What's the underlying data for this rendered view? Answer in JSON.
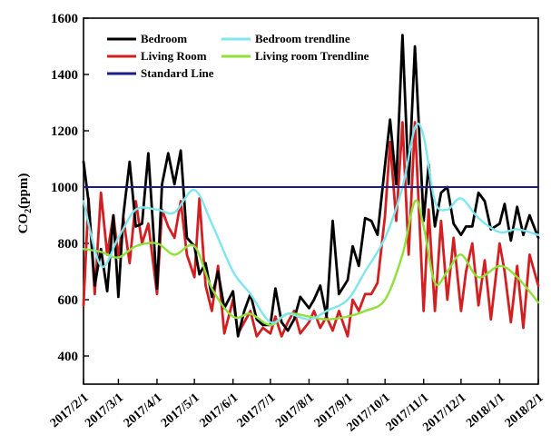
{
  "chart_data": {
    "type": "line",
    "title": "",
    "ylabel": "CO₂(ppm)",
    "ylabel_main": "CO",
    "ylabel_sub": "2",
    "ylabel_rest": "(ppm)",
    "xlabel": "",
    "ylim": [
      300,
      1600
    ],
    "y_ticks": [
      400,
      600,
      800,
      1000,
      1200,
      1400,
      1600
    ],
    "x_tick_labels": [
      "2017/2/1",
      "2017/3/1",
      "2017/4/1",
      "2017/5/1",
      "2017/6/1",
      "2017/7/1",
      "2017/8/1",
      "2017/9/1",
      "2017/10/1",
      "2017/11/1",
      "2017/12/1",
      "2018/1/1",
      "2018/2/1"
    ],
    "grid": false,
    "legend_position": "top-left",
    "colors": {
      "bedroom": "#000000",
      "bedroom_trend": "#7fe6ee",
      "living": "#d11f22",
      "living_trend": "#8ee03a",
      "standard": "#1b1b8c"
    },
    "series": [
      {
        "name": "Bedroom",
        "key": "bedroom",
        "x": [
          "2017/2/1",
          "2017/2/5",
          "2017/2/10",
          "2017/2/15",
          "2017/2/20",
          "2017/2/25",
          "2017/3/1",
          "2017/3/5",
          "2017/3/10",
          "2017/3/15",
          "2017/3/20",
          "2017/3/25",
          "2017/4/1",
          "2017/4/5",
          "2017/4/10",
          "2017/4/15",
          "2017/4/20",
          "2017/4/25",
          "2017/5/1",
          "2017/5/5",
          "2017/5/10",
          "2017/5/15",
          "2017/5/20",
          "2017/5/25",
          "2017/6/1",
          "2017/6/5",
          "2017/6/10",
          "2017/6/15",
          "2017/6/20",
          "2017/6/25",
          "2017/7/1",
          "2017/7/5",
          "2017/7/10",
          "2017/7/15",
          "2017/7/20",
          "2017/7/25",
          "2017/8/1",
          "2017/8/5",
          "2017/8/10",
          "2017/8/15",
          "2017/8/20",
          "2017/8/25",
          "2017/9/1",
          "2017/9/5",
          "2017/9/10",
          "2017/9/15",
          "2017/9/20",
          "2017/9/25",
          "2017/10/1",
          "2017/10/5",
          "2017/10/10",
          "2017/10/15",
          "2017/10/20",
          "2017/10/25",
          "2017/11/1",
          "2017/11/5",
          "2017/11/10",
          "2017/11/15",
          "2017/11/20",
          "2017/11/25",
          "2017/12/1",
          "2017/12/5",
          "2017/12/10",
          "2017/12/15",
          "2017/12/20",
          "2017/12/25",
          "2018/1/1",
          "2018/1/5",
          "2018/1/10",
          "2018/1/15",
          "2018/1/20",
          "2018/1/25",
          "2018/2/1"
        ],
        "values": [
          1090,
          950,
          650,
          780,
          630,
          900,
          610,
          900,
          1090,
          860,
          870,
          1120,
          640,
          1010,
          1120,
          1010,
          1130,
          820,
          790,
          690,
          730,
          610,
          700,
          570,
          630,
          470,
          560,
          620,
          530,
          510,
          510,
          640,
          520,
          490,
          530,
          610,
          570,
          600,
          650,
          540,
          880,
          620,
          670,
          790,
          720,
          890,
          880,
          830,
          1080,
          1240,
          1010,
          1540,
          1010,
          1500,
          880,
          1080,
          860,
          980,
          1000,
          870,
          830,
          860,
          860,
          980,
          950,
          850,
          870,
          940,
          810,
          930,
          830,
          900,
          820
        ]
      },
      {
        "name": "Bedroom trendline",
        "key": "bedroom_trend",
        "x": [
          "2017/2/1",
          "2017/2/15",
          "2017/3/1",
          "2017/3/15",
          "2017/4/1",
          "2017/4/15",
          "2017/5/1",
          "2017/5/15",
          "2017/6/1",
          "2017/6/15",
          "2017/7/1",
          "2017/7/15",
          "2017/8/1",
          "2017/8/15",
          "2017/9/1",
          "2017/9/15",
          "2017/10/1",
          "2017/10/15",
          "2017/10/25",
          "2017/11/1",
          "2017/11/10",
          "2017/11/20",
          "2017/12/1",
          "2017/12/15",
          "2018/1/1",
          "2018/1/15",
          "2018/2/1"
        ],
        "values": [
          950,
          720,
          820,
          920,
          920,
          910,
          990,
          870,
          700,
          620,
          520,
          550,
          530,
          560,
          600,
          700,
          820,
          1000,
          1210,
          1180,
          950,
          920,
          960,
          890,
          840,
          850,
          830
        ]
      },
      {
        "name": "Living Room",
        "key": "living",
        "x": [
          "2017/2/1",
          "2017/2/5",
          "2017/2/10",
          "2017/2/15",
          "2017/2/20",
          "2017/2/25",
          "2017/3/1",
          "2017/3/5",
          "2017/3/10",
          "2017/3/15",
          "2017/3/20",
          "2017/3/25",
          "2017/4/1",
          "2017/4/5",
          "2017/4/10",
          "2017/4/15",
          "2017/4/20",
          "2017/4/25",
          "2017/5/1",
          "2017/5/5",
          "2017/5/10",
          "2017/5/15",
          "2017/5/20",
          "2017/5/25",
          "2017/6/1",
          "2017/6/5",
          "2017/6/10",
          "2017/6/15",
          "2017/6/20",
          "2017/6/25",
          "2017/7/1",
          "2017/7/5",
          "2017/7/10",
          "2017/7/15",
          "2017/7/20",
          "2017/7/25",
          "2017/8/1",
          "2017/8/5",
          "2017/8/10",
          "2017/8/15",
          "2017/8/20",
          "2017/8/25",
          "2017/9/1",
          "2017/9/5",
          "2017/9/10",
          "2017/9/15",
          "2017/9/20",
          "2017/9/25",
          "2017/10/1",
          "2017/10/5",
          "2017/10/10",
          "2017/10/15",
          "2017/10/20",
          "2017/10/25",
          "2017/11/1",
          "2017/11/5",
          "2017/11/10",
          "2017/11/15",
          "2017/11/20",
          "2017/11/25",
          "2017/12/1",
          "2017/12/5",
          "2017/12/10",
          "2017/12/15",
          "2017/12/20",
          "2017/12/25",
          "2018/1/1",
          "2018/1/5",
          "2018/1/10",
          "2018/1/15",
          "2018/1/20",
          "2018/1/25",
          "2018/2/1"
        ],
        "values": [
          580,
          960,
          620,
          980,
          760,
          900,
          750,
          890,
          730,
          950,
          800,
          870,
          620,
          920,
          860,
          820,
          950,
          760,
          680,
          960,
          650,
          560,
          720,
          480,
          600,
          480,
          520,
          560,
          470,
          500,
          480,
          540,
          470,
          520,
          560,
          480,
          520,
          560,
          500,
          540,
          490,
          560,
          470,
          600,
          560,
          620,
          620,
          660,
          900,
          1160,
          880,
          1230,
          760,
          1230,
          560,
          920,
          560,
          880,
          600,
          820,
          560,
          700,
          800,
          580,
          740,
          530,
          800,
          700,
          520,
          720,
          500,
          760,
          650
        ]
      },
      {
        "name": "Living room Trendline",
        "key": "living_trend",
        "x": [
          "2017/2/1",
          "2017/2/15",
          "2017/3/1",
          "2017/3/15",
          "2017/4/1",
          "2017/4/15",
          "2017/5/1",
          "2017/5/15",
          "2017/6/1",
          "2017/6/15",
          "2017/7/1",
          "2017/7/15",
          "2017/8/1",
          "2017/8/15",
          "2017/9/1",
          "2017/9/15",
          "2017/10/1",
          "2017/10/15",
          "2017/10/25",
          "2017/11/1",
          "2017/11/10",
          "2017/11/20",
          "2017/12/1",
          "2017/12/15",
          "2018/1/1",
          "2018/1/15",
          "2018/2/1"
        ],
        "values": [
          780,
          770,
          750,
          790,
          800,
          760,
          790,
          640,
          540,
          550,
          510,
          550,
          540,
          530,
          540,
          560,
          600,
          760,
          950,
          860,
          660,
          700,
          760,
          680,
          720,
          680,
          590
        ]
      },
      {
        "name": "Standard Line",
        "key": "standard",
        "x": [
          "2017/2/1",
          "2018/2/1"
        ],
        "values": [
          1000,
          1000
        ]
      }
    ]
  }
}
